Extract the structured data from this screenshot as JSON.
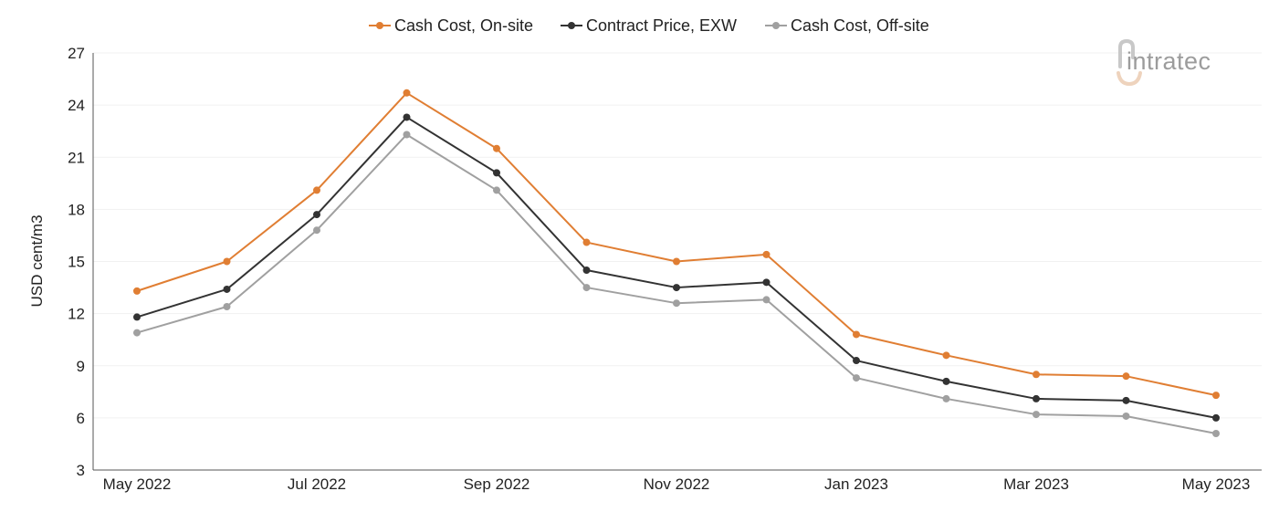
{
  "chart_data": {
    "type": "line",
    "ylabel": "USD cent/m3",
    "ylim": [
      3,
      27
    ],
    "yticks": [
      3,
      6,
      9,
      12,
      15,
      18,
      21,
      24,
      27
    ],
    "x": [
      "May 2022",
      "Jun 2022",
      "Jul 2022",
      "Aug 2022",
      "Sep 2022",
      "Oct 2022",
      "Nov 2022",
      "Dec 2022",
      "Jan 2023",
      "Feb 2023",
      "Mar 2023",
      "Apr 2023",
      "May 2023"
    ],
    "xtick_labels": [
      "May 2022",
      "Jul 2022",
      "Sep 2022",
      "Nov 2022",
      "Jan 2023",
      "Mar 2023",
      "May 2023"
    ],
    "legend_position": "top-center",
    "grid": "horizontal",
    "series": [
      {
        "name": "Cash Cost, On-site",
        "color": "#e07e33",
        "values": [
          13.3,
          15.0,
          19.1,
          24.7,
          21.5,
          16.1,
          15.0,
          15.4,
          10.8,
          9.6,
          8.5,
          8.4,
          7.3
        ]
      },
      {
        "name": "Contract Price, EXW",
        "color": "#333333",
        "values": [
          11.8,
          13.4,
          17.7,
          23.3,
          20.1,
          14.5,
          13.5,
          13.8,
          9.3,
          8.1,
          7.1,
          7.0,
          6.0
        ]
      },
      {
        "name": "Cash Cost, Off-site",
        "color": "#a0a0a0",
        "values": [
          10.9,
          12.4,
          16.8,
          22.3,
          19.1,
          13.5,
          12.6,
          12.8,
          8.3,
          7.1,
          6.2,
          6.1,
          5.1
        ]
      }
    ]
  },
  "logo": {
    "text": "intratec"
  }
}
